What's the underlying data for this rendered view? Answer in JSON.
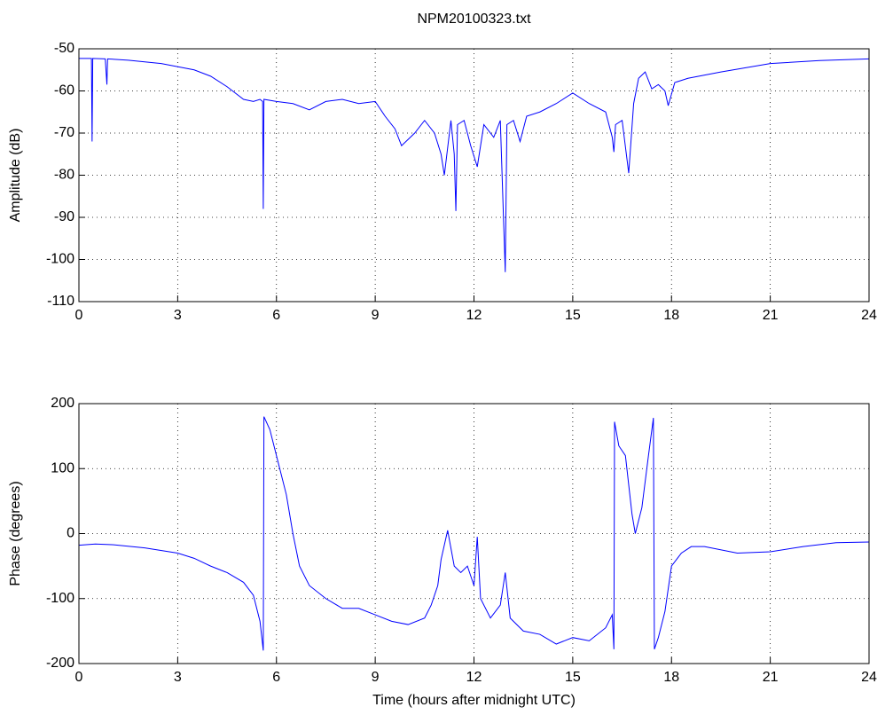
{
  "chart_data": [
    {
      "type": "line",
      "title": "NPM20100323.txt",
      "ylabel": "Amplitude (dB)",
      "color": "#0000ff",
      "grid": true,
      "xlim": [
        0,
        24
      ],
      "xticks": [
        0,
        3,
        6,
        9,
        12,
        15,
        18,
        21,
        24
      ],
      "ylim": [
        -110,
        -50
      ],
      "yticks": [
        -110,
        -100,
        -90,
        -80,
        -70,
        -60,
        -50
      ],
      "x": [
        0,
        0.3,
        0.38,
        0.4,
        0.42,
        0.8,
        0.85,
        0.87,
        1.5,
        2.5,
        3.5,
        4.0,
        4.5,
        5.0,
        5.3,
        5.5,
        5.58,
        5.6,
        5.62,
        6.0,
        6.5,
        7.0,
        7.5,
        8.0,
        8.5,
        9.0,
        9.3,
        9.6,
        9.8,
        10.2,
        10.5,
        10.8,
        11.0,
        11.1,
        11.3,
        11.4,
        11.45,
        11.5,
        11.7,
        11.9,
        12.1,
        12.3,
        12.6,
        12.8,
        12.95,
        13.0,
        13.2,
        13.4,
        13.6,
        14.0,
        14.5,
        15.0,
        15.5,
        16.0,
        16.2,
        16.25,
        16.3,
        16.5,
        16.7,
        16.85,
        17.0,
        17.2,
        17.4,
        17.6,
        17.8,
        17.9,
        18.1,
        18.5,
        19.5,
        21,
        22.5,
        24
      ],
      "values": [
        -52.3,
        -52.3,
        -52.3,
        -72,
        -52.3,
        -52.4,
        -58.5,
        -52.4,
        -52.7,
        -53.5,
        -55,
        -56.5,
        -59,
        -62,
        -62.5,
        -62,
        -62.5,
        -88,
        -62,
        -62.5,
        -63,
        -64.5,
        -62.5,
        -62,
        -63,
        -62.5,
        -66,
        -69,
        -73,
        -70,
        -67,
        -70,
        -75,
        -80,
        -67,
        -75,
        -88.5,
        -68,
        -67,
        -73,
        -78,
        -68,
        -71,
        -67,
        -103,
        -68,
        -67,
        -72,
        -66,
        -65,
        -63,
        -60.5,
        -63,
        -65,
        -71,
        -74.5,
        -68,
        -67,
        -79.5,
        -63,
        -57,
        -55.5,
        -59.5,
        -58.5,
        -60,
        -63.5,
        -58,
        -57,
        -55.5,
        -53.5,
        -52.8,
        -52.4
      ]
    },
    {
      "type": "line",
      "ylabel": "Phase (degrees)",
      "xlabel": "Time (hours after midnight UTC)",
      "color": "#0000ff",
      "grid": true,
      "xlim": [
        0,
        24
      ],
      "xticks": [
        0,
        3,
        6,
        9,
        12,
        15,
        18,
        21,
        24
      ],
      "ylim": [
        -200,
        200
      ],
      "yticks": [
        -200,
        -100,
        0,
        100,
        200
      ],
      "x": [
        0,
        0.5,
        1.0,
        2.0,
        3.0,
        3.5,
        4.0,
        4.5,
        5.0,
        5.3,
        5.5,
        5.6,
        5.62,
        5.8,
        6.0,
        6.3,
        6.5,
        6.7,
        7.0,
        7.5,
        8.0,
        8.5,
        9.0,
        9.5,
        10.0,
        10.5,
        10.7,
        10.9,
        11.0,
        11.2,
        11.4,
        11.6,
        11.8,
        12.0,
        12.1,
        12.2,
        12.5,
        12.8,
        12.95,
        13.1,
        13.5,
        14.0,
        14.5,
        15.0,
        15.5,
        16.0,
        16.2,
        16.25,
        16.27,
        16.4,
        16.6,
        16.8,
        16.9,
        17.1,
        17.3,
        17.45,
        17.48,
        17.6,
        17.8,
        18.0,
        18.3,
        18.6,
        19,
        20,
        21,
        22,
        23,
        24
      ],
      "values": [
        -18,
        -16,
        -17,
        -22,
        -30,
        -38,
        -50,
        -60,
        -75,
        -95,
        -135,
        -180,
        180,
        160,
        120,
        60,
        0,
        -50,
        -80,
        -100,
        -115,
        -115,
        -125,
        -135,
        -140,
        -130,
        -110,
        -80,
        -40,
        5,
        -50,
        -60,
        -50,
        -80,
        -5,
        -100,
        -130,
        -110,
        -60,
        -130,
        -150,
        -155,
        -170,
        -160,
        -165,
        -145,
        -125,
        -178,
        172,
        135,
        120,
        30,
        0,
        40,
        120,
        178,
        -178,
        -160,
        -120,
        -50,
        -30,
        -20,
        -20,
        -30,
        -28,
        -20,
        -14,
        -13
      ]
    }
  ]
}
